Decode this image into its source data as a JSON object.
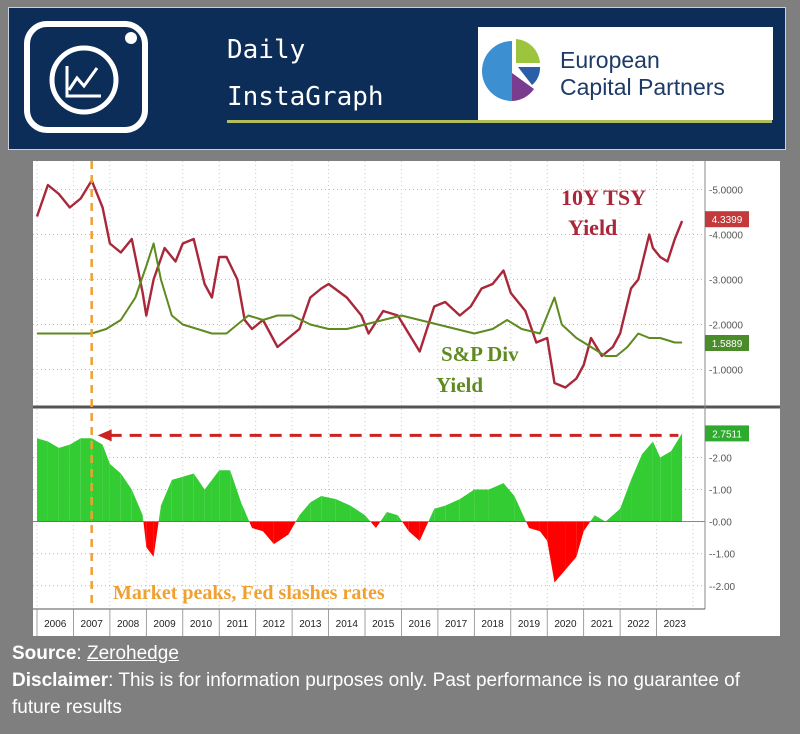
{
  "header": {
    "brand_line1": "Daily",
    "brand_line2": "InstaGraph",
    "partner_name_line1": "European",
    "partner_name_line2": "Capital Partners",
    "logo_icon": "line-chart-camera-icon",
    "partner_logo_icon": "ecp-arc-logo-icon",
    "colors": {
      "banner": "#0c2d57",
      "accent_line": "#b5bd5a"
    }
  },
  "chart_data": [
    {
      "type": "line",
      "series": [
        {
          "name": "10Y TSY Yield",
          "color": "#a8283a",
          "last_value_label": "4.3399",
          "points": [
            [
              2006,
              4.4
            ],
            [
              2006.3,
              5.1
            ],
            [
              2006.6,
              4.9
            ],
            [
              2006.9,
              4.6
            ],
            [
              2007.2,
              4.8
            ],
            [
              2007.5,
              5.2
            ],
            [
              2007.8,
              4.6
            ],
            [
              2008.0,
              3.8
            ],
            [
              2008.3,
              3.6
            ],
            [
              2008.6,
              3.9
            ],
            [
              2008.9,
              2.7
            ],
            [
              2009.0,
              2.2
            ],
            [
              2009.2,
              3.0
            ],
            [
              2009.5,
              3.7
            ],
            [
              2009.8,
              3.4
            ],
            [
              2010.0,
              3.8
            ],
            [
              2010.3,
              3.9
            ],
            [
              2010.6,
              2.9
            ],
            [
              2010.8,
              2.6
            ],
            [
              2011.0,
              3.5
            ],
            [
              2011.2,
              3.5
            ],
            [
              2011.5,
              3.0
            ],
            [
              2011.7,
              2.1
            ],
            [
              2011.9,
              1.9
            ],
            [
              2012.2,
              2.1
            ],
            [
              2012.6,
              1.5
            ],
            [
              2012.9,
              1.7
            ],
            [
              2013.2,
              1.9
            ],
            [
              2013.5,
              2.6
            ],
            [
              2013.8,
              2.8
            ],
            [
              2014.0,
              2.9
            ],
            [
              2014.5,
              2.6
            ],
            [
              2014.9,
              2.2
            ],
            [
              2015.1,
              1.8
            ],
            [
              2015.5,
              2.3
            ],
            [
              2015.9,
              2.2
            ],
            [
              2016.2,
              1.8
            ],
            [
              2016.5,
              1.4
            ],
            [
              2016.9,
              2.4
            ],
            [
              2017.2,
              2.5
            ],
            [
              2017.6,
              2.2
            ],
            [
              2017.9,
              2.4
            ],
            [
              2018.2,
              2.8
            ],
            [
              2018.5,
              2.9
            ],
            [
              2018.8,
              3.2
            ],
            [
              2019.0,
              2.7
            ],
            [
              2019.4,
              2.3
            ],
            [
              2019.7,
              1.6
            ],
            [
              2020.0,
              1.7
            ],
            [
              2020.2,
              0.7
            ],
            [
              2020.5,
              0.6
            ],
            [
              2020.8,
              0.8
            ],
            [
              2021.0,
              1.1
            ],
            [
              2021.2,
              1.7
            ],
            [
              2021.5,
              1.3
            ],
            [
              2021.8,
              1.5
            ],
            [
              2022.0,
              1.8
            ],
            [
              2022.3,
              2.8
            ],
            [
              2022.5,
              3.0
            ],
            [
              2022.8,
              4.0
            ],
            [
              2022.9,
              3.7
            ],
            [
              2023.1,
              3.5
            ],
            [
              2023.3,
              3.4
            ],
            [
              2023.5,
              3.9
            ],
            [
              2023.7,
              4.3
            ]
          ]
        },
        {
          "name": "S&P Div Yield",
          "color": "#5e8a1f",
          "last_value_label": "1.5889",
          "points": [
            [
              2006,
              1.8
            ],
            [
              2006.5,
              1.8
            ],
            [
              2007.0,
              1.8
            ],
            [
              2007.5,
              1.8
            ],
            [
              2007.9,
              1.9
            ],
            [
              2008.3,
              2.1
            ],
            [
              2008.7,
              2.6
            ],
            [
              2009.0,
              3.3
            ],
            [
              2009.2,
              3.8
            ],
            [
              2009.4,
              3.0
            ],
            [
              2009.7,
              2.2
            ],
            [
              2010.0,
              2.0
            ],
            [
              2010.4,
              1.9
            ],
            [
              2010.8,
              1.8
            ],
            [
              2011.2,
              1.8
            ],
            [
              2011.5,
              2.0
            ],
            [
              2011.8,
              2.2
            ],
            [
              2012.2,
              2.1
            ],
            [
              2012.6,
              2.2
            ],
            [
              2013.0,
              2.2
            ],
            [
              2013.5,
              2.0
            ],
            [
              2014.0,
              1.9
            ],
            [
              2014.5,
              1.9
            ],
            [
              2015.0,
              2.0
            ],
            [
              2015.5,
              2.1
            ],
            [
              2016.0,
              2.2
            ],
            [
              2016.5,
              2.1
            ],
            [
              2017.0,
              2.0
            ],
            [
              2017.5,
              1.9
            ],
            [
              2018.0,
              1.8
            ],
            [
              2018.5,
              1.9
            ],
            [
              2018.9,
              2.1
            ],
            [
              2019.3,
              1.9
            ],
            [
              2019.8,
              1.8
            ],
            [
              2020.2,
              2.6
            ],
            [
              2020.4,
              2.0
            ],
            [
              2020.8,
              1.7
            ],
            [
              2021.2,
              1.5
            ],
            [
              2021.6,
              1.3
            ],
            [
              2021.9,
              1.3
            ],
            [
              2022.2,
              1.5
            ],
            [
              2022.5,
              1.8
            ],
            [
              2022.8,
              1.7
            ],
            [
              2023.1,
              1.7
            ],
            [
              2023.5,
              1.6
            ],
            [
              2023.7,
              1.6
            ]
          ]
        }
      ],
      "annotations": [
        {
          "text_line1": "10Y TSY",
          "text_line2": "Yield"
        },
        {
          "text_line1": "S&P Div",
          "text_line2": "Yield"
        }
      ],
      "yticks": [
        "5.0000",
        "4.0000",
        "3.0000",
        "2.0000",
        "1.0000"
      ],
      "ylim": [
        0.3,
        5.5
      ],
      "xlim": [
        2006,
        2024
      ]
    },
    {
      "type": "area",
      "series": [
        {
          "name": "spread",
          "positive_color": "#33cc33",
          "negative_color": "#ff0000",
          "last_value_label": "2.7511",
          "points": [
            [
              2006,
              2.6
            ],
            [
              2006.3,
              2.5
            ],
            [
              2006.6,
              2.3
            ],
            [
              2006.9,
              2.4
            ],
            [
              2007.2,
              2.6
            ],
            [
              2007.5,
              2.6
            ],
            [
              2007.8,
              2.4
            ],
            [
              2008.0,
              1.8
            ],
            [
              2008.3,
              1.5
            ],
            [
              2008.6,
              1.0
            ],
            [
              2008.9,
              0.2
            ],
            [
              2009.0,
              -0.8
            ],
            [
              2009.2,
              -1.1
            ],
            [
              2009.4,
              0.5
            ],
            [
              2009.7,
              1.3
            ],
            [
              2010.0,
              1.4
            ],
            [
              2010.3,
              1.5
            ],
            [
              2010.6,
              1.0
            ],
            [
              2010.8,
              1.3
            ],
            [
              2011.0,
              1.6
            ],
            [
              2011.3,
              1.6
            ],
            [
              2011.6,
              0.6
            ],
            [
              2011.9,
              -0.2
            ],
            [
              2012.2,
              -0.3
            ],
            [
              2012.5,
              -0.7
            ],
            [
              2012.9,
              -0.4
            ],
            [
              2013.2,
              0.2
            ],
            [
              2013.5,
              0.6
            ],
            [
              2013.8,
              0.8
            ],
            [
              2014.2,
              0.7
            ],
            [
              2014.6,
              0.5
            ],
            [
              2015.0,
              0.2
            ],
            [
              2015.3,
              -0.2
            ],
            [
              2015.6,
              0.3
            ],
            [
              2015.9,
              0.2
            ],
            [
              2016.2,
              -0.3
            ],
            [
              2016.5,
              -0.6
            ],
            [
              2016.9,
              0.4
            ],
            [
              2017.2,
              0.5
            ],
            [
              2017.6,
              0.7
            ],
            [
              2018.0,
              1.0
            ],
            [
              2018.4,
              1.0
            ],
            [
              2018.8,
              1.2
            ],
            [
              2019.1,
              0.8
            ],
            [
              2019.5,
              -0.2
            ],
            [
              2019.8,
              -0.3
            ],
            [
              2020.0,
              -0.6
            ],
            [
              2020.2,
              -1.9
            ],
            [
              2020.5,
              -1.5
            ],
            [
              2020.8,
              -1.1
            ],
            [
              2021.0,
              -0.3
            ],
            [
              2021.3,
              0.2
            ],
            [
              2021.6,
              0.0
            ],
            [
              2022.0,
              0.4
            ],
            [
              2022.3,
              1.3
            ],
            [
              2022.6,
              2.1
            ],
            [
              2022.9,
              2.5
            ],
            [
              2023.1,
              2.0
            ],
            [
              2023.4,
              2.2
            ],
            [
              2023.7,
              2.75
            ]
          ]
        }
      ],
      "yticks": [
        "2.00",
        "1.00",
        "0.00",
        "-1.00",
        "-2.00"
      ],
      "ylim": [
        -2.6,
        3.2
      ],
      "annotation": "Market peaks, Fed slashes rates",
      "xtick_labels": [
        "2006",
        "2007",
        "2008",
        "2009",
        "2010",
        "2011",
        "2012",
        "2013",
        "2014",
        "2015",
        "2016",
        "2017",
        "2018",
        "2019",
        "2020",
        "2021",
        "2022",
        "2023"
      ],
      "marker_x": 2007.5,
      "marker_color": "#f0a030",
      "arrow_color": "#cc2222"
    }
  ],
  "footer": {
    "source_label": "Source",
    "source_value": "Zerohedge",
    "disclaimer_label": "Disclaimer",
    "disclaimer_text": "This is for information purposes only. Past performance is no guarantee of future results"
  }
}
